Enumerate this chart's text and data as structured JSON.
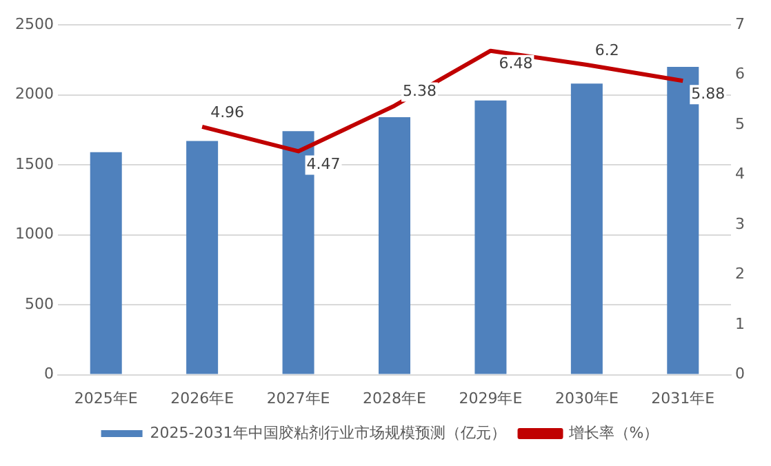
{
  "chart_data": {
    "type": "bar",
    "categories": [
      "2025年E",
      "2026年E",
      "2027年E",
      "2028年E",
      "2029年E",
      "2030年E",
      "2031年E"
    ],
    "series": [
      {
        "name": "2025-2031年中国胶粘剂行业市场规模预测（亿元）",
        "color": "#4f81bd",
        "values": [
          1590,
          1670,
          1740,
          1840,
          1960,
          2080,
          2200
        ]
      },
      {
        "name": "增长率（%）",
        "type": "line",
        "axis": "y2",
        "color": "#c00000",
        "marker": "none",
        "values": [
          null,
          4.96,
          4.47,
          5.38,
          6.48,
          6.2,
          5.88
        ],
        "value_labels": [
          null,
          "4.96",
          "4.47",
          "5.38",
          "6.48",
          "6.2",
          "5.88"
        ]
      }
    ],
    "ylim": [
      0,
      2500
    ],
    "yticks": [
      0,
      500,
      1000,
      1500,
      2000,
      2500
    ],
    "y2lim": [
      0,
      7
    ],
    "y2ticks": [
      0,
      1,
      2,
      3,
      4,
      5,
      6,
      7
    ],
    "grid": "y",
    "legend": "bottom"
  }
}
